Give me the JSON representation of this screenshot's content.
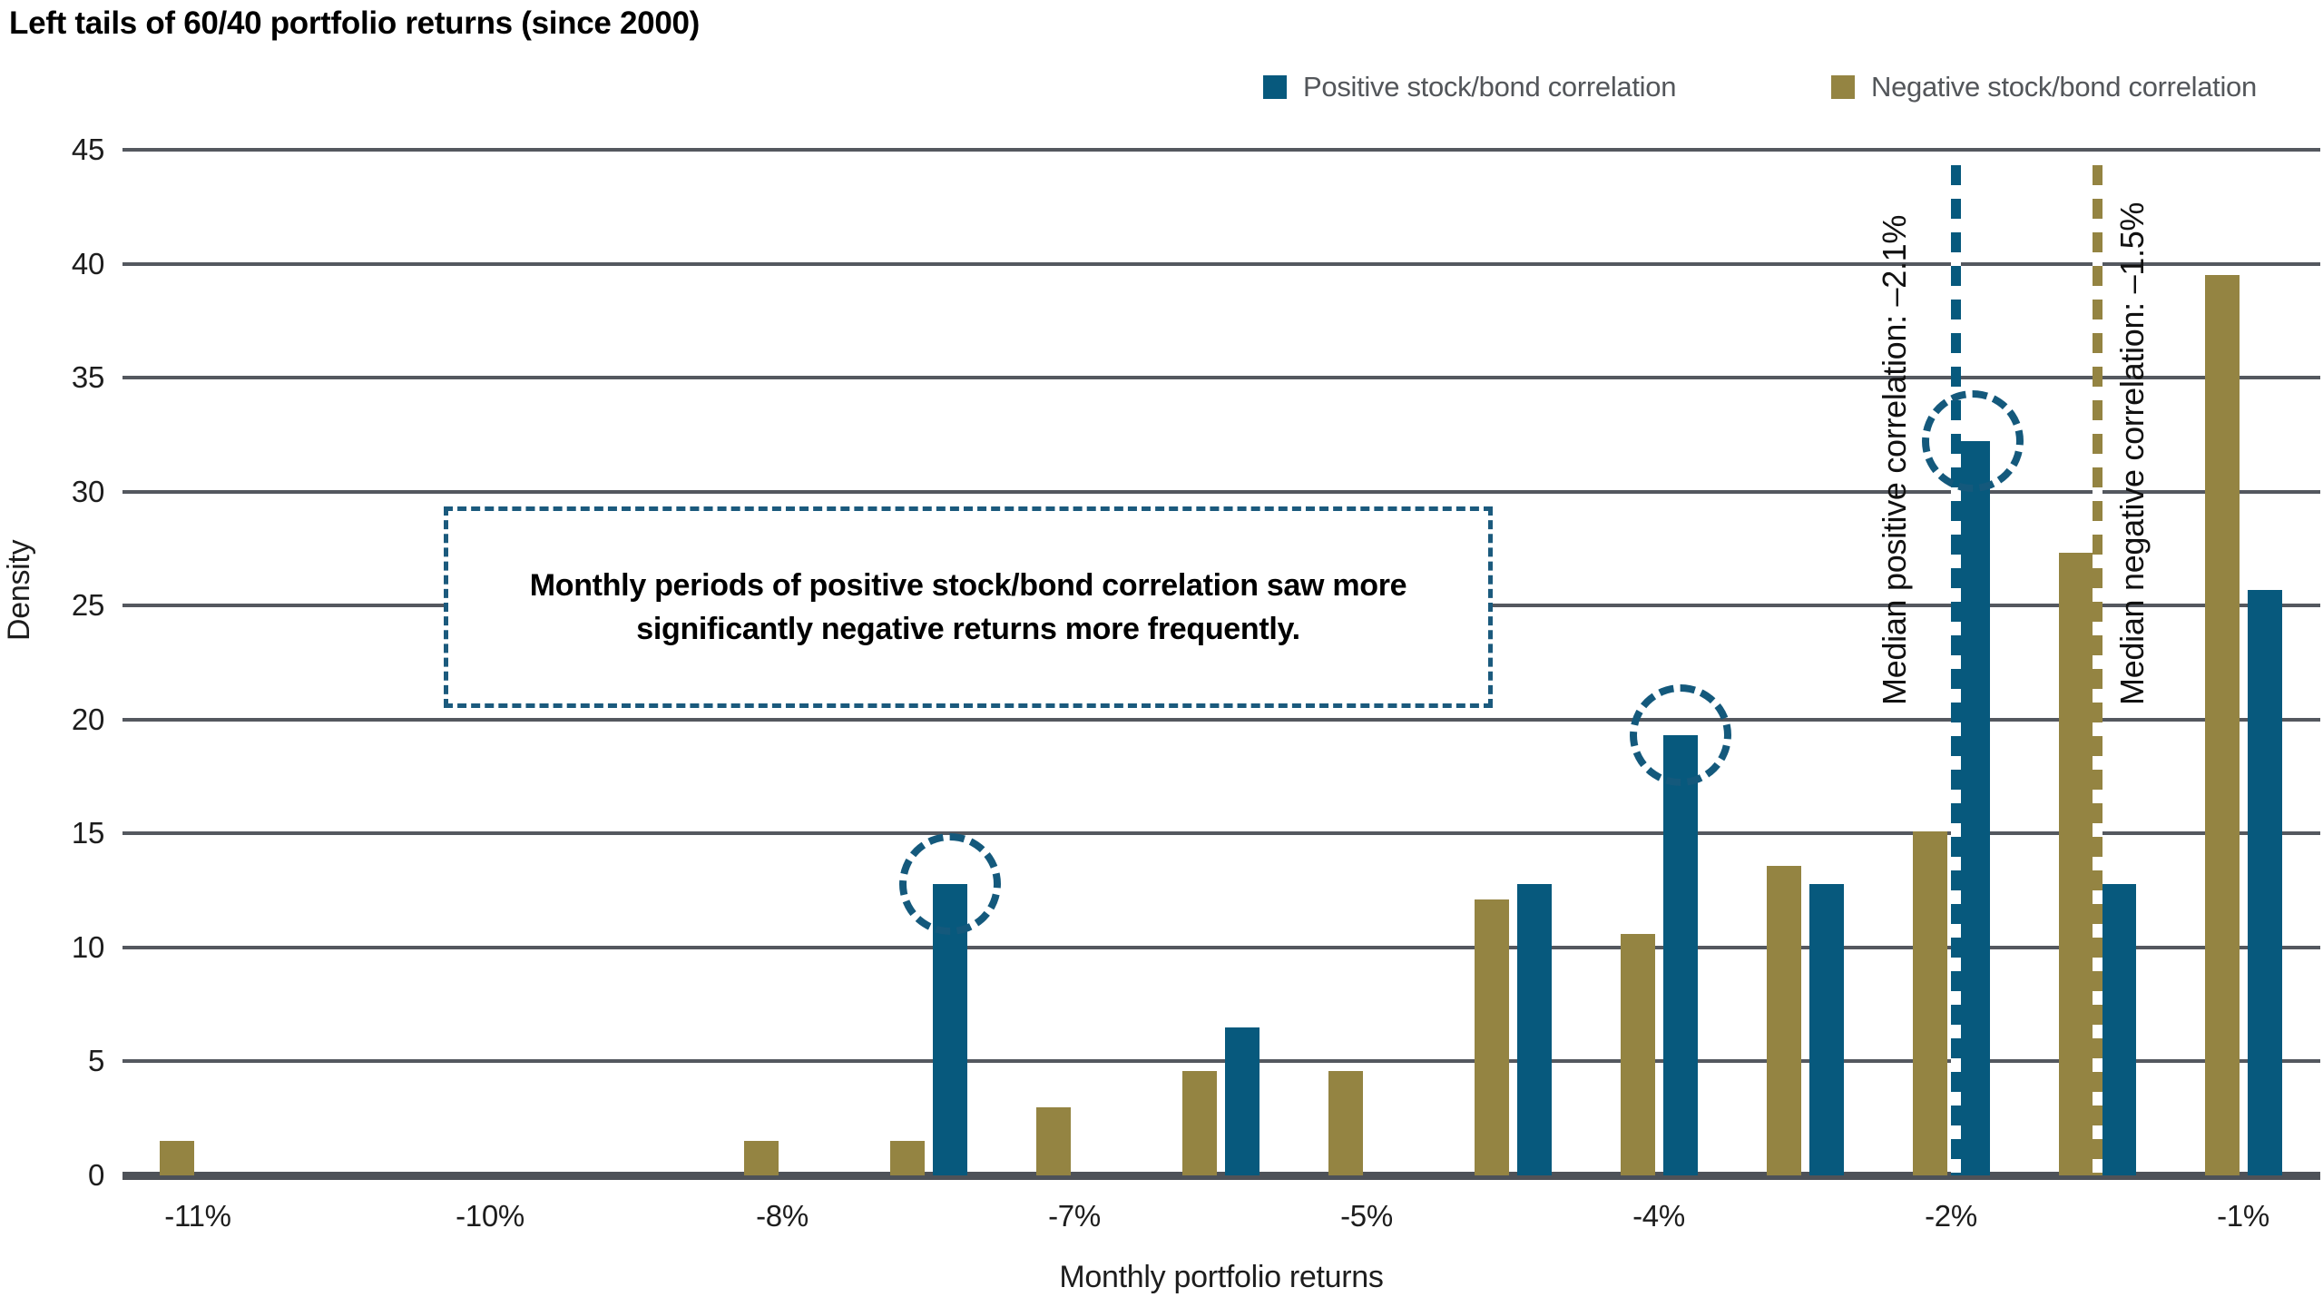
{
  "title": "Left tails of 60/40 portfolio returns (since 2000)",
  "legend": {
    "positive": {
      "label": "Positive stock/bond correlation",
      "color": "#07597d"
    },
    "negative": {
      "label": "Negative stock/bond correlation",
      "color": "#948442"
    }
  },
  "annotation": {
    "line1": "Monthly periods of positive stock/bond correlation saw more",
    "line2": "significantly negative returns more frequently."
  },
  "medians": {
    "positive": {
      "label": "Median positive correlation: –2.1%",
      "value_pct": -2.1
    },
    "negative": {
      "label": "Median negative correlation: –1.5%",
      "value_pct": -1.5
    }
  },
  "colors": {
    "positive_blue": "#07597d",
    "negative_olive": "#948442",
    "gridline": "#54585f",
    "legend_text": "#53565a"
  },
  "chart_data": {
    "type": "bar",
    "title": "Left tails of 60/40 portfolio returns (since 2000)",
    "xlabel": "Monthly portfolio returns",
    "ylabel": "Density",
    "ylim": [
      0,
      45
    ],
    "ytick_step": 5,
    "grid": "horizontal",
    "legend_position": "top-right",
    "series_names": [
      "Positive stock/bond correlation",
      "Negative stock/bond correlation"
    ],
    "xticks": [
      {
        "label": "-11%",
        "slot": 0
      },
      {
        "label": "-10%",
        "slot": 2
      },
      {
        "label": "-8%",
        "slot": 4
      },
      {
        "label": "-7%",
        "slot": 6
      },
      {
        "label": "-5%",
        "slot": 8
      },
      {
        "label": "-4%",
        "slot": 10
      },
      {
        "label": "-2%",
        "slot": 12
      },
      {
        "label": "-1%",
        "slot": 14
      }
    ],
    "groups": [
      {
        "bin": "-11%",
        "slot": 0,
        "negative": 1.5,
        "positive": null
      },
      {
        "bin": "-8%",
        "slot": 4,
        "negative": 1.5,
        "positive": null
      },
      {
        "bin": "-7.5%",
        "slot": 5,
        "negative": 1.5,
        "positive": 12.8,
        "positive_circled": true
      },
      {
        "bin": "-7%",
        "slot": 6,
        "negative": 3.0,
        "positive": null
      },
      {
        "bin": "-6%",
        "slot": 7,
        "negative": 4.6,
        "positive": 6.5
      },
      {
        "bin": "-5%",
        "slot": 8,
        "negative": 4.6,
        "positive": null
      },
      {
        "bin": "-4.5%",
        "slot": 9,
        "negative": 12.1,
        "positive": 12.8
      },
      {
        "bin": "-4%",
        "slot": 10,
        "negative": 10.6,
        "positive": 19.3,
        "positive_circled": true
      },
      {
        "bin": "-3%",
        "slot": 11,
        "negative": 13.6,
        "positive": 12.8
      },
      {
        "bin": "-2%",
        "slot": 12,
        "negative": 15.1,
        "positive": 32.2,
        "positive_circled": true
      },
      {
        "bin": "-1.5%",
        "slot": 13,
        "negative": 27.3,
        "positive": 12.8
      },
      {
        "bin": "-1%",
        "slot": 14,
        "negative": 39.5,
        "positive": 25.7
      }
    ],
    "median_lines": [
      {
        "series": "positive",
        "slot_x": 12.03,
        "label": "Median positive correlation: –2.1%"
      },
      {
        "series": "negative",
        "slot_x": 13.0,
        "label": "Median negative correlation: –1.5%"
      }
    ]
  }
}
